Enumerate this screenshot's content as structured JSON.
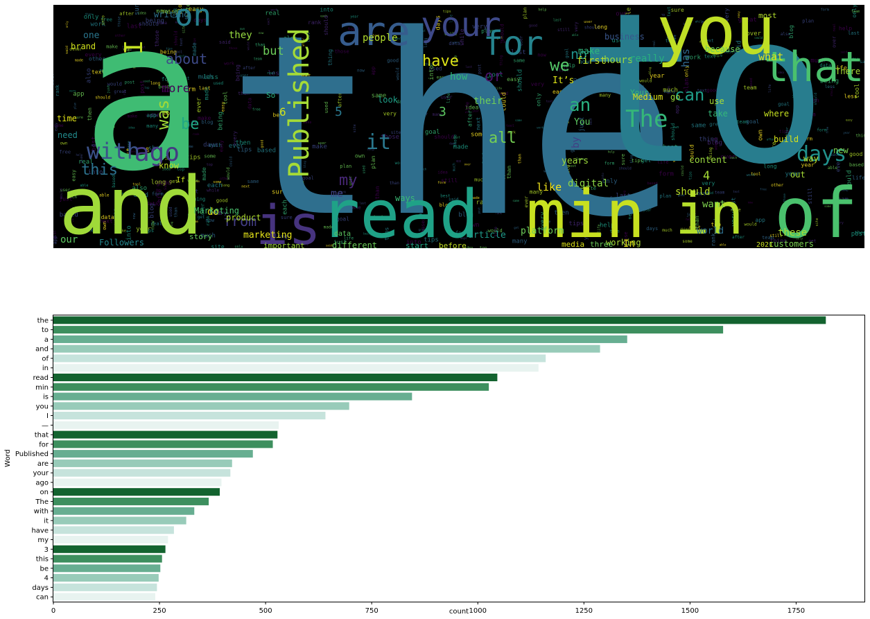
{
  "wordcloud": {
    "background": "#000000",
    "words": [
      {
        "text": "a",
        "color": "#3fbc73"
      },
      {
        "text": "the",
        "color": "#2f6f8e"
      },
      {
        "text": "to",
        "color": "#287d8e"
      },
      {
        "text": "and",
        "color": "#a0da39"
      },
      {
        "text": "read",
        "color": "#1fa287"
      },
      {
        "text": "min",
        "color": "#c8e020"
      },
      {
        "text": "in",
        "color": "#b5de2b"
      },
      {
        "text": "of",
        "color": "#4ac16d"
      },
      {
        "text": "you",
        "color": "#c0df25"
      },
      {
        "text": "that",
        "color": "#4ac16d"
      },
      {
        "text": "is",
        "color": "#46337e"
      },
      {
        "text": "Published",
        "color": "#a5db36"
      },
      {
        "text": "are",
        "color": "#365c8d"
      },
      {
        "text": "your",
        "color": "#3e4989"
      },
      {
        "text": "for",
        "color": "#25848e"
      },
      {
        "text": "on",
        "color": "#277f8e"
      },
      {
        "text": "I",
        "color": "#c2df23"
      },
      {
        "text": "with",
        "color": "#3b528b"
      },
      {
        "text": "ago",
        "color": "#443a83"
      },
      {
        "text": "The",
        "color": "#35b779"
      },
      {
        "text": "this",
        "color": "#2c728e"
      },
      {
        "text": "have",
        "color": "#dde318"
      },
      {
        "text": "it",
        "color": "#2a788e"
      },
      {
        "text": "my",
        "color": "#482878"
      },
      {
        "text": "days",
        "color": "#21918c"
      },
      {
        "text": "can",
        "color": "#1f9e89"
      },
      {
        "text": "be",
        "color": "#21a685"
      },
      {
        "text": "was",
        "color": "#a2da37"
      },
      {
        "text": "an",
        "color": "#2ab07f"
      },
      {
        "text": "we",
        "color": "#54c568"
      },
      {
        "text": "or",
        "color": "#471164"
      },
      {
        "text": "all",
        "color": "#75d054"
      },
      {
        "text": "about",
        "color": "#3e4a89"
      },
      {
        "text": "more",
        "color": "#440154"
      },
      {
        "text": "from",
        "color": "#433e85"
      },
      {
        "text": "not",
        "color": "#20928c"
      },
      {
        "text": "what",
        "color": "#dde318"
      },
      {
        "text": "has",
        "color": "#31688e"
      },
      {
        "text": "but",
        "color": "#6ccd5a"
      },
      {
        "text": "they",
        "color": "#95d840"
      },
      {
        "text": "people",
        "color": "#b2dd2d"
      },
      {
        "text": "hours",
        "color": "#9bd93c"
      },
      {
        "text": "really",
        "color": "#29af7f"
      },
      {
        "text": "first",
        "color": "#c2df23"
      },
      {
        "text": "make",
        "color": "#31b57b"
      },
      {
        "text": "how",
        "color": "#32b67a"
      },
      {
        "text": "their",
        "color": "#6ece58"
      },
      {
        "text": "like",
        "color": "#f1e51d"
      },
      {
        "text": "4",
        "color": "#a5db36"
      },
      {
        "text": "6",
        "color": "#d2e21b"
      },
      {
        "text": "3",
        "color": "#5ec962"
      },
      {
        "text": "5",
        "color": "#2a788e"
      },
      {
        "text": "digital",
        "color": "#8bd646"
      },
      {
        "text": "should",
        "color": "#b8de29"
      },
      {
        "text": "want",
        "color": "#7fd34e"
      },
      {
        "text": "content",
        "color": "#98d83e"
      },
      {
        "text": "do",
        "color": "#dde318"
      },
      {
        "text": "our",
        "color": "#5ec962"
      },
      {
        "text": "these",
        "color": "#a8db34"
      },
      {
        "text": "me",
        "color": "#414487"
      },
      {
        "text": "business",
        "color": "#39568c"
      },
      {
        "text": "because",
        "color": "#6ccd5a"
      },
      {
        "text": "Medium",
        "color": "#dde318"
      },
      {
        "text": "go",
        "color": "#9bd93c"
      },
      {
        "text": "world",
        "color": "#2e6e8e"
      },
      {
        "text": "platform",
        "color": "#6ece58"
      },
      {
        "text": "article",
        "color": "#1f9a8a"
      },
      {
        "text": "marketing",
        "color": "#e5e419"
      },
      {
        "text": "writing",
        "color": "#2d708e"
      },
      {
        "text": "by",
        "color": "#433d84"
      },
      {
        "text": "years",
        "color": "#9bd93c"
      },
      {
        "text": "working",
        "color": "#a8db34"
      },
      {
        "text": "build",
        "color": "#d5e21a"
      },
      {
        "text": "ways",
        "color": "#3bbb75"
      },
      {
        "text": "know",
        "color": "#bddf26"
      },
      {
        "text": "time",
        "color": "#e2e418"
      },
      {
        "text": "Marketing",
        "color": "#4ac16d"
      },
      {
        "text": "product",
        "color": "#b0dd2f"
      },
      {
        "text": "customers",
        "color": "#7ad151"
      },
      {
        "text": "Followers",
        "color": "#24878e"
      },
      {
        "text": "It’s",
        "color": "#dde318"
      },
      {
        "text": "where",
        "color": "#c5e021"
      },
      {
        "text": "story",
        "color": "#65cb5e"
      },
      {
        "text": "take",
        "color": "#35b779"
      },
      {
        "text": "use",
        "color": "#a8db34"
      },
      {
        "text": "one",
        "color": "#2a768e"
      },
      {
        "text": "look",
        "color": "#1f9f88"
      },
      {
        "text": "data",
        "color": "#5ec962"
      },
      {
        "text": "those",
        "color": "#34618d"
      },
      {
        "text": "different",
        "color": "#6ccd5a"
      },
      {
        "text": "important",
        "color": "#a0da39"
      },
      {
        "text": "brand",
        "color": "#d0e11c"
      },
      {
        "text": "need",
        "color": "#228b8d"
      },
      {
        "text": "If",
        "color": "#c8e020"
      },
      {
        "text": "So",
        "color": "#2ab07f"
      },
      {
        "text": "out",
        "color": "#a5db36"
      },
      {
        "text": "way",
        "color": "#bddf26"
      },
      {
        "text": "new",
        "color": "#7fd34e"
      },
      {
        "text": "most",
        "color": "#b2dd2d"
      },
      {
        "text": "You",
        "color": "#5ec962"
      },
      {
        "text": "2021",
        "color": "#c8e020"
      },
      {
        "text": "In",
        "color": "#e7e419"
      },
      {
        "text": "There",
        "color": "#a8db34"
      },
      {
        "text": "Your",
        "color": "#37b878"
      },
      {
        "text": "three",
        "color": "#6ccd5a"
      },
      {
        "text": "media",
        "color": "#dde318"
      },
      {
        "text": "start",
        "color": "#22a785"
      },
      {
        "text": "before",
        "color": "#c2df23"
      }
    ]
  },
  "chart_data": {
    "type": "bar",
    "orientation": "horizontal",
    "categories": [
      "the",
      "to",
      "a",
      "and",
      "of",
      "in",
      "read",
      "min",
      "is",
      "you",
      "I",
      "—",
      "that",
      "for",
      "Published",
      "are",
      "your",
      "ago",
      "on",
      "The",
      "with",
      "it",
      "have",
      "my",
      "3",
      "this",
      "be",
      "4",
      "days",
      "can"
    ],
    "values": [
      1820,
      1578,
      1352,
      1288,
      1160,
      1143,
      1046,
      1026,
      845,
      697,
      641,
      531,
      528,
      517,
      470,
      421,
      417,
      396,
      392,
      366,
      332,
      313,
      284,
      270,
      264,
      256,
      252,
      248,
      244,
      240
    ],
    "xlabel": "count",
    "ylabel": "Word",
    "xlim": [
      0,
      1911
    ],
    "xticks": [
      0,
      250,
      500,
      750,
      1000,
      1250,
      1500,
      1750
    ],
    "grid": false,
    "palette": [
      "#13632f",
      "#3d8f5e",
      "#67ae91",
      "#98cbb9",
      "#c6e3dc",
      "#e8f3f0"
    ]
  }
}
